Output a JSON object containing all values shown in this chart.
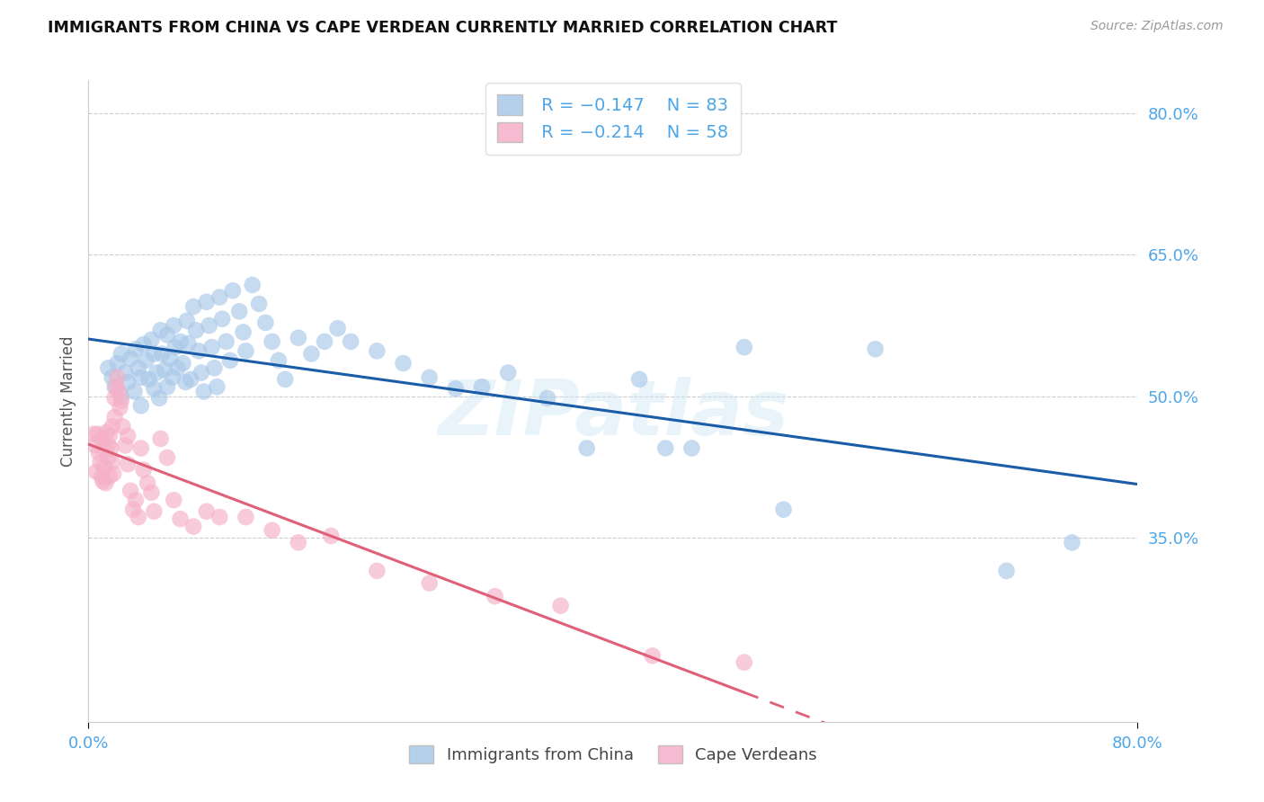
{
  "title": "IMMIGRANTS FROM CHINA VS CAPE VERDEAN CURRENTLY MARRIED CORRELATION CHART",
  "source": "Source: ZipAtlas.com",
  "ylabel": "Currently Married",
  "legend_china": "Immigrants from China",
  "legend_cv": "Cape Verdeans",
  "legend_r_china": "R = −0.147",
  "legend_n_china": "N = 83",
  "legend_r_cv": "R = −0.214",
  "legend_n_cv": "N = 58",
  "x_min": 0.0,
  "x_max": 0.8,
  "y_min": 0.155,
  "y_max": 0.835,
  "yticks": [
    0.35,
    0.5,
    0.65,
    0.8
  ],
  "ytick_labels": [
    "35.0%",
    "50.0%",
    "65.0%",
    "80.0%"
  ],
  "color_china": "#a8c8e8",
  "color_cv": "#f5b0c8",
  "color_line_china": "#1a5ca8",
  "color_line_cv": "#e0607a",
  "color_tick_labels": "#4da6e8",
  "watermark": "ZIPatlas",
  "china_x": [
    0.015,
    0.018,
    0.02,
    0.022,
    0.025,
    0.025,
    0.028,
    0.03,
    0.032,
    0.035,
    0.036,
    0.038,
    0.04,
    0.04,
    0.042,
    0.044,
    0.046,
    0.048,
    0.05,
    0.05,
    0.052,
    0.054,
    0.055,
    0.056,
    0.058,
    0.06,
    0.06,
    0.062,
    0.064,
    0.065,
    0.066,
    0.068,
    0.07,
    0.072,
    0.074,
    0.075,
    0.076,
    0.078,
    0.08,
    0.082,
    0.084,
    0.086,
    0.088,
    0.09,
    0.092,
    0.094,
    0.096,
    0.098,
    0.1,
    0.102,
    0.105,
    0.108,
    0.11,
    0.115,
    0.118,
    0.12,
    0.125,
    0.13,
    0.135,
    0.14,
    0.145,
    0.15,
    0.16,
    0.17,
    0.18,
    0.19,
    0.2,
    0.22,
    0.24,
    0.26,
    0.28,
    0.3,
    0.32,
    0.35,
    0.38,
    0.42,
    0.44,
    0.46,
    0.5,
    0.53,
    0.6,
    0.7,
    0.75
  ],
  "china_y": [
    0.53,
    0.52,
    0.51,
    0.535,
    0.545,
    0.5,
    0.525,
    0.515,
    0.54,
    0.505,
    0.55,
    0.53,
    0.52,
    0.49,
    0.555,
    0.538,
    0.518,
    0.56,
    0.508,
    0.545,
    0.525,
    0.498,
    0.57,
    0.545,
    0.528,
    0.51,
    0.565,
    0.54,
    0.52,
    0.575,
    0.552,
    0.53,
    0.558,
    0.535,
    0.515,
    0.58,
    0.556,
    0.518,
    0.595,
    0.57,
    0.548,
    0.525,
    0.505,
    0.6,
    0.575,
    0.552,
    0.53,
    0.51,
    0.605,
    0.582,
    0.558,
    0.538,
    0.612,
    0.59,
    0.568,
    0.548,
    0.618,
    0.598,
    0.578,
    0.558,
    0.538,
    0.518,
    0.562,
    0.545,
    0.558,
    0.572,
    0.558,
    0.548,
    0.535,
    0.52,
    0.508,
    0.51,
    0.525,
    0.498,
    0.445,
    0.518,
    0.445,
    0.445,
    0.552,
    0.38,
    0.55,
    0.315,
    0.345
  ],
  "cv_x": [
    0.004,
    0.005,
    0.006,
    0.007,
    0.008,
    0.009,
    0.01,
    0.01,
    0.011,
    0.012,
    0.012,
    0.013,
    0.014,
    0.015,
    0.015,
    0.016,
    0.016,
    0.017,
    0.018,
    0.018,
    0.019,
    0.02,
    0.02,
    0.021,
    0.022,
    0.023,
    0.024,
    0.025,
    0.026,
    0.028,
    0.03,
    0.03,
    0.032,
    0.034,
    0.036,
    0.038,
    0.04,
    0.042,
    0.045,
    0.048,
    0.05,
    0.055,
    0.06,
    0.065,
    0.07,
    0.08,
    0.09,
    0.1,
    0.12,
    0.14,
    0.16,
    0.185,
    0.22,
    0.26,
    0.31,
    0.36,
    0.43,
    0.5
  ],
  "cv_y": [
    0.46,
    0.448,
    0.42,
    0.46,
    0.44,
    0.43,
    0.455,
    0.415,
    0.41,
    0.445,
    0.425,
    0.408,
    0.462,
    0.435,
    0.448,
    0.415,
    0.458,
    0.445,
    0.468,
    0.43,
    0.418,
    0.478,
    0.498,
    0.51,
    0.52,
    0.505,
    0.488,
    0.495,
    0.468,
    0.448,
    0.458,
    0.428,
    0.4,
    0.38,
    0.39,
    0.372,
    0.445,
    0.422,
    0.408,
    0.398,
    0.378,
    0.455,
    0.435,
    0.39,
    0.37,
    0.362,
    0.378,
    0.372,
    0.372,
    0.358,
    0.345,
    0.352,
    0.315,
    0.302,
    0.288,
    0.278,
    0.225,
    0.218
  ],
  "cv_line_start_x": 0.004,
  "cv_line_solid_end_x": 0.5,
  "cv_line_dashed_end_x": 0.8
}
